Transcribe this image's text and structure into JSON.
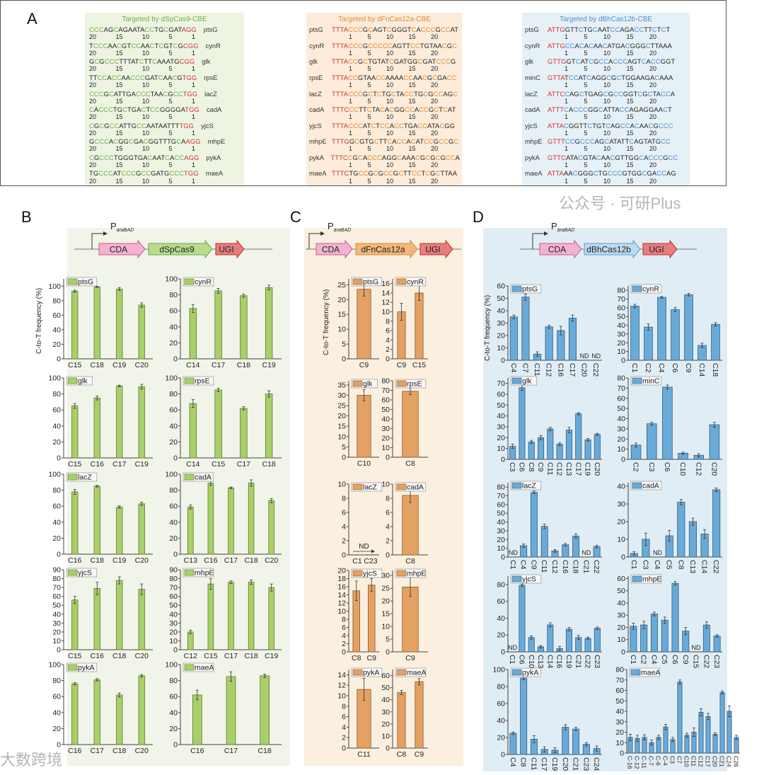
{
  "panel_labels": {
    "A": "A",
    "B": "B",
    "C": "C",
    "D": "D"
  },
  "panel_a": [
    {
      "id": "cas9",
      "title": "Targeted by dSpCas9-CBE",
      "title_color": "#6ab04c",
      "c_color": "#6ab04c",
      "pam_color": "#d03030",
      "pam": "3prime",
      "positions": [
        "20",
        "15",
        "10",
        "5",
        "1"
      ],
      "rows": [
        {
          "gene": "ptsG",
          "seq": "CCCAGCAGAATACCTGCGATAGG"
        },
        {
          "gene": "cynR",
          "seq": "TCCCAACGTCCAACTCGTCGCGG"
        },
        {
          "gene": "glk",
          "seq": "GCGCCCTTTATCTTCAAATGCGG"
        },
        {
          "gene": "rpsE",
          "seq": "TTCCACCAACCCGATCAACGTGG"
        },
        {
          "gene": "lacZ",
          "seq": "CCCGCATTGACCCTAACGCCTGG"
        },
        {
          "gene": "cadA",
          "seq": "CACCCTGCTGACTCCGGGGATGG"
        },
        {
          "gene": "yjcS",
          "seq": "CGCGCCATTGCCAATAATTTTGG"
        },
        {
          "gene": "mhpE",
          "seq": "GCCCACGGCGACGGTTTGCAAGG"
        },
        {
          "gene": "pykA",
          "seq": "CGCCCTGGGTGACAATCACCAGG"
        },
        {
          "gene": "maeA",
          "seq": "TGCCCATCCCGCCGATGCCCTGG"
        }
      ]
    },
    {
      "id": "cas12a",
      "title": "Targeted by dFnCas12a-CBE",
      "title_color": "#e08a3a",
      "c_color": "#e08a3a",
      "pam_color": "#d03030",
      "pam": "5prime",
      "positions": [
        "1",
        "5",
        "10",
        "15",
        "20"
      ],
      "rows": [
        {
          "gene": "ptsG",
          "seq": "TTTACCCGCAGTCGGGTCACCCGCCAT"
        },
        {
          "gene": "cynR",
          "seq": "TTTACCCGCCCCCAGTTCCTGTAACGC"
        },
        {
          "gene": "glk",
          "seq": "TTTACCGCTGTATCGATGGCGATCCCG"
        },
        {
          "gene": "rpsE",
          "seq": "TTTACCGTAACCAAAACCAACGCGACC"
        },
        {
          "gene": "lacZ",
          "seq": "TTTACCCGCTCTGCTACCTGCGCCAGC"
        },
        {
          "gene": "cadA",
          "seq": "TTTCCCTTCTACACGGCCACCGCTCAT"
        },
        {
          "gene": "yjcS",
          "seq": "TTTACCCATCTCCACCTGACCATACGG"
        },
        {
          "gene": "mhpE",
          "seq": "TTTGGCGTGCTTCACCACATCCGCCGC"
        },
        {
          "gene": "pykA",
          "seq": "TTTCCGCACCCAGGCAAACGCGCGCCA"
        },
        {
          "gene": "maeA",
          "seq": "TTTCTGCCGCGCCGCTTCCTCGCTTAA"
        }
      ]
    },
    {
      "id": "cas12b",
      "title": "Targeted by dBhCas12b-CBE",
      "title_color": "#4a8fcf",
      "c_color": "#4a8fcf",
      "pam_color": "#d03030",
      "pam": "5prime",
      "positions": [
        "1",
        "5",
        "10",
        "15",
        "20"
      ],
      "rows": [
        {
          "gene": "ptsG",
          "seq": "ATTGGTTCTGCAATCCAGACCTTCTCT"
        },
        {
          "gene": "cynR",
          "seq": "ATTGCCACACAACATGACGGGCTTAAA"
        },
        {
          "gene": "glk",
          "seq": "GTTGGTCATCGCCACCCAGTCACCGGT"
        },
        {
          "gene": "minC",
          "seq": "GTTATCCATCAGGCGCTGGAAGACAAA"
        },
        {
          "gene": "lacZ",
          "seq": "ATTCCAGCTGAGCGCCGGTCGCTACCA"
        },
        {
          "gene": "cadA",
          "seq": "ATTTCACCCGGCATTACCAGAGGAACT"
        },
        {
          "gene": "yjcS",
          "seq": "ATTACGGTTCTGTCAGCCACAACGCCC"
        },
        {
          "gene": "mhpE",
          "seq": "GTTTCCGCCCAGCATATTCAGTATGCC"
        },
        {
          "gene": "pykA",
          "seq": "GTTCATACGTACAACGTTGGCACCCGCC"
        },
        {
          "gene": "maeA",
          "seq": "ATTAAACGGGCTGCCCGTGGCGACCAG"
        }
      ]
    }
  ],
  "constructs": {
    "B": {
      "promoter": "P",
      "promoter_sub": "araBAD",
      "parts": [
        "CDA",
        "dSpCas9",
        "UGI"
      ]
    },
    "C": {
      "promoter": "P",
      "promoter_sub": "araBAD",
      "parts": [
        "CDA",
        "dFnCas12a",
        "UGI"
      ]
    },
    "D": {
      "promoter": "P",
      "promoter_sub": "araBAD",
      "parts": [
        "CDA",
        "dBhCas12b",
        "UGI"
      ]
    }
  },
  "colors": {
    "B_bar": "#a9cf6a",
    "C_bar": "#e3a163",
    "D_bar": "#6aaad8",
    "CDA": "#f2b3cf",
    "UGI": "#e77d7d"
  },
  "ylabel": "C-to-T frequency (%)",
  "nd_label": "ND",
  "watermarks": [
    "大数跨境",
    "公众号 · 可研Plus"
  ],
  "chart_data": [
    {
      "panel": "B",
      "type": "bar",
      "legend": "ptsG",
      "ylabel": "C-to-T frequency (%)",
      "ylim": [
        0,
        110
      ],
      "ystep": 20,
      "categories": [
        "C15",
        "C18",
        "C19",
        "C20"
      ],
      "values": [
        93,
        99,
        96,
        74
      ],
      "errors": [
        1.5,
        0.8,
        2,
        3
      ]
    },
    {
      "panel": "B",
      "type": "bar",
      "legend": "cynR",
      "ylim": [
        0,
        100
      ],
      "ystep": 20,
      "categories": [
        "C14",
        "C17",
        "C18",
        "C19"
      ],
      "values": [
        63,
        85,
        79,
        89
      ],
      "errors": [
        5,
        3,
        2,
        3
      ]
    },
    {
      "panel": "B",
      "type": "bar",
      "legend": "glk",
      "ylim": [
        0,
        100
      ],
      "ystep": 20,
      "categories": [
        "C15",
        "C16",
        "C17",
        "C19"
      ],
      "values": [
        65,
        75,
        90,
        89
      ],
      "errors": [
        3,
        2.5,
        1,
        3
      ]
    },
    {
      "panel": "B",
      "type": "bar",
      "legend": "rpsE",
      "ylim": [
        0,
        100
      ],
      "ystep": 20,
      "categories": [
        "C14",
        "C15",
        "C17",
        "C18"
      ],
      "values": [
        68,
        85,
        62,
        80
      ],
      "errors": [
        5,
        2,
        2,
        4
      ]
    },
    {
      "panel": "B",
      "type": "bar",
      "legend": "lacZ",
      "ylim": [
        0,
        100
      ],
      "ystep": 20,
      "categories": [
        "C16",
        "C18",
        "C19",
        "C20"
      ],
      "values": [
        78,
        85,
        59,
        63
      ],
      "errors": [
        3,
        1,
        1.5,
        2
      ]
    },
    {
      "panel": "B",
      "type": "bar",
      "legend": "cadA",
      "ylim": [
        0,
        100
      ],
      "ystep": 20,
      "categories": [
        "C13",
        "C16",
        "C17",
        "C18",
        "C20"
      ],
      "values": [
        59,
        89,
        83,
        89,
        67
      ],
      "errors": [
        2.5,
        3,
        1,
        4,
        2.5
      ]
    },
    {
      "panel": "B",
      "type": "bar",
      "legend": "yjcS",
      "ylim": [
        0,
        90
      ],
      "ystep": 10,
      "categories": [
        "C15",
        "C16",
        "C18",
        "C20"
      ],
      "values": [
        56,
        69,
        78,
        68
      ],
      "errors": [
        4,
        7,
        4,
        6
      ]
    },
    {
      "panel": "B",
      "type": "bar",
      "legend": "mhpE",
      "ylim": [
        0,
        90
      ],
      "ystep": 10,
      "categories": [
        "C12",
        "C15",
        "C17",
        "C18",
        "C19"
      ],
      "values": [
        20,
        74,
        76,
        76,
        70
      ],
      "errors": [
        2,
        6,
        1.5,
        2.5,
        4
      ]
    },
    {
      "panel": "B",
      "type": "bar",
      "legend": "pykA",
      "ylim": [
        0,
        100
      ],
      "ystep": 20,
      "categories": [
        "C16",
        "C17",
        "C18",
        "C20"
      ],
      "values": [
        76,
        81,
        62,
        86
      ],
      "errors": [
        1.5,
        1.5,
        2.5,
        1.5
      ]
    },
    {
      "panel": "B",
      "type": "bar",
      "legend": "maeA",
      "ylim": [
        0,
        100
      ],
      "ystep": 20,
      "categories": [
        "C16",
        "C17",
        "C18"
      ],
      "values": [
        62,
        85,
        86
      ],
      "errors": [
        6,
        6,
        2
      ]
    },
    {
      "panel": "C",
      "type": "bar",
      "legend": "ptsG",
      "ylabel": "C-to-T frequency (%)",
      "ylim": [
        0,
        27
      ],
      "ystep": 5,
      "categories": [
        "C9"
      ],
      "values": [
        23.5
      ],
      "errors": [
        2.3
      ]
    },
    {
      "panel": "C",
      "type": "bar",
      "legend": "cynR",
      "ylim": [
        0,
        17
      ],
      "ystep": 2,
      "categories": [
        "C9",
        "C15"
      ],
      "values": [
        10,
        14
      ],
      "errors": [
        1.8,
        1.6
      ]
    },
    {
      "panel": "C",
      "type": "bar",
      "legend": "glk",
      "ylim": [
        0,
        37
      ],
      "ystep": 5,
      "categories": [
        "C10"
      ],
      "values": [
        30
      ],
      "errors": [
        2.7
      ]
    },
    {
      "panel": "C",
      "type": "bar",
      "legend": "rpsE",
      "ylim": [
        0,
        80
      ],
      "ystep": 10,
      "categories": [
        "C8"
      ],
      "values": [
        69
      ],
      "errors": [
        3.5
      ]
    },
    {
      "panel": "C",
      "type": "bar",
      "legend": "lacZ",
      "ylim": [
        0,
        10
      ],
      "ystep": 2,
      "categories": [
        "C1",
        "C23"
      ],
      "values": [
        null,
        null
      ],
      "errors": [
        0,
        0
      ],
      "nd_range": true
    },
    {
      "panel": "C",
      "type": "bar",
      "legend": "cadA",
      "ylim": [
        0,
        10
      ],
      "ystep": 2,
      "categories": [
        "C8"
      ],
      "values": [
        8.4
      ],
      "errors": [
        1
      ]
    },
    {
      "panel": "C",
      "type": "bar",
      "legend": "yjcS",
      "ylim": [
        0,
        20
      ],
      "ystep": 2,
      "categories": [
        "C8",
        "C9"
      ],
      "values": [
        15,
        16.4
      ],
      "errors": [
        2.4,
        1.6
      ]
    },
    {
      "panel": "C",
      "type": "bar",
      "legend": "mhpE",
      "ylim": [
        0,
        32
      ],
      "ystep": 5,
      "categories": [
        "C9"
      ],
      "values": [
        25.5
      ],
      "errors": [
        3.7
      ]
    },
    {
      "panel": "C",
      "type": "bar",
      "legend": "pykA",
      "ylim": [
        0,
        15
      ],
      "ystep": 2,
      "categories": [
        "C11"
      ],
      "values": [
        11.2
      ],
      "errors": [
        2.1
      ]
    },
    {
      "panel": "C",
      "type": "bar",
      "legend": "maeA",
      "ylim": [
        0,
        65
      ],
      "ystep": 10,
      "categories": [
        "C8",
        "C9"
      ],
      "values": [
        46,
        55
      ],
      "errors": [
        1.8,
        2.5
      ]
    },
    {
      "panel": "D",
      "type": "bar",
      "legend": "ptsG",
      "ylabel": "C-to-T frequency (%)",
      "ylim": [
        0,
        60
      ],
      "ystep": 10,
      "categories": [
        "C4",
        "C7",
        "C11",
        "C12",
        "C16",
        "C17",
        "C20",
        "C22"
      ],
      "values": [
        35,
        51,
        5,
        27,
        24,
        34,
        null,
        null
      ],
      "errors": [
        1.5,
        2.5,
        1.8,
        1.3,
        3.5,
        2.5,
        0,
        0
      ]
    },
    {
      "panel": "D",
      "type": "bar",
      "legend": "cynR",
      "ylim": [
        0,
        85
      ],
      "ystep": 10,
      "categories": [
        "C1",
        "C2",
        "C4",
        "C6",
        "C9",
        "C14",
        "C18"
      ],
      "values": [
        62,
        38,
        72,
        58,
        75,
        17,
        41
      ],
      "errors": [
        2,
        3.5,
        1,
        2.5,
        1.5,
        2.5,
        2
      ]
    },
    {
      "panel": "D",
      "type": "bar",
      "legend": "glk",
      "ylim": [
        0,
        75
      ],
      "ystep": 10,
      "categories": [
        "C3",
        "C6",
        "C8",
        "C9",
        "C11",
        "C12",
        "C13",
        "C17",
        "C19",
        "C20"
      ],
      "values": [
        12,
        66,
        16,
        20,
        28,
        14,
        27,
        42,
        18,
        23
      ],
      "errors": [
        2,
        2.5,
        1.5,
        2,
        1.5,
        1.2,
        2.5,
        1,
        1.2,
        1
      ]
    },
    {
      "panel": "D",
      "type": "bar",
      "legend": "minC",
      "ylim": [
        0,
        80
      ],
      "ystep": 10,
      "categories": [
        "C2",
        "C3",
        "C6",
        "C10",
        "C12",
        "C20"
      ],
      "values": [
        14,
        35,
        71,
        6,
        4,
        34
      ],
      "errors": [
        2,
        1.5,
        2,
        1,
        1.5,
        2.5
      ]
    },
    {
      "panel": "D",
      "type": "bar",
      "legend": "lacZ",
      "ylim": [
        0,
        85
      ],
      "ystep": 10,
      "categories": [
        "C1",
        "C4",
        "C9",
        "C11",
        "C12",
        "C16",
        "C18",
        "C21",
        "C22"
      ],
      "values": [
        null,
        13,
        74,
        35,
        7,
        14,
        24,
        null,
        12
      ],
      "errors": [
        0,
        2,
        1.5,
        2.5,
        1.5,
        1.5,
        2.5,
        0,
        1.5
      ]
    },
    {
      "panel": "D",
      "type": "bar",
      "legend": "cadA",
      "ylim": [
        0,
        42
      ],
      "ystep": 10,
      "categories": [
        "C1",
        "C3",
        "C4",
        "C5",
        "C8",
        "C13",
        "C14",
        "C22"
      ],
      "values": [
        2,
        10,
        null,
        12,
        31,
        20,
        13,
        38
      ],
      "errors": [
        1,
        3.5,
        0,
        3,
        1.5,
        2,
        2.5,
        1
      ]
    },
    {
      "panel": "D",
      "type": "bar",
      "legend": "yjcS",
      "ylim": [
        0,
        90
      ],
      "ystep": 20,
      "categories": [
        "C1",
        "C6",
        "C10",
        "C13",
        "C14",
        "C16",
        "C19",
        "C21",
        "C22",
        "C23"
      ],
      "values": [
        null,
        79,
        17,
        6,
        32,
        4,
        27,
        17,
        16,
        28
      ],
      "errors": [
        0,
        1.5,
        2,
        1.5,
        2.5,
        2.5,
        2,
        2.5,
        1.5,
        1.5
      ]
    },
    {
      "panel": "D",
      "type": "bar",
      "legend": "mhpE",
      "ylim": [
        0,
        62
      ],
      "ystep": 10,
      "categories": [
        "C1",
        "C2",
        "C4",
        "C5",
        "C6",
        "C9",
        "C15",
        "C22",
        "C23"
      ],
      "values": [
        21,
        22,
        31,
        26,
        56,
        17,
        null,
        22,
        13
      ],
      "errors": [
        2.5,
        3,
        1.5,
        2.5,
        1.5,
        3,
        0,
        2.5,
        1
      ]
    },
    {
      "panel": "D",
      "type": "bar",
      "legend": "pykA",
      "ylim": [
        0,
        100
      ],
      "ystep": 20,
      "categories": [
        "C4",
        "C8",
        "C11",
        "C17",
        "C19",
        "C20",
        "C21",
        "C23",
        "C24"
      ],
      "values": [
        25,
        90,
        18,
        6,
        5,
        32,
        30,
        12,
        7
      ],
      "errors": [
        1.5,
        2,
        4,
        3,
        3,
        3,
        2,
        2,
        3
      ]
    },
    {
      "panel": "D",
      "type": "bar",
      "legend": "maeA",
      "ylim": [
        0,
        80
      ],
      "ystep": 10,
      "categories": [
        "C-16",
        "C-12",
        "C-11",
        "C-7",
        "C-6",
        "C-4",
        "C3",
        "C7",
        "C10",
        "C11",
        "C12",
        "C17",
        "C20",
        "C21",
        "C24",
        "C26"
      ],
      "values": [
        15,
        14,
        15,
        10,
        15,
        25,
        13,
        68,
        17,
        20,
        39,
        35,
        18,
        58,
        40,
        15
      ],
      "errors": [
        3,
        3,
        2.5,
        2.5,
        2,
        2.5,
        2,
        2,
        2,
        4,
        3.5,
        3,
        1.5,
        1.5,
        5,
        2
      ]
    }
  ]
}
